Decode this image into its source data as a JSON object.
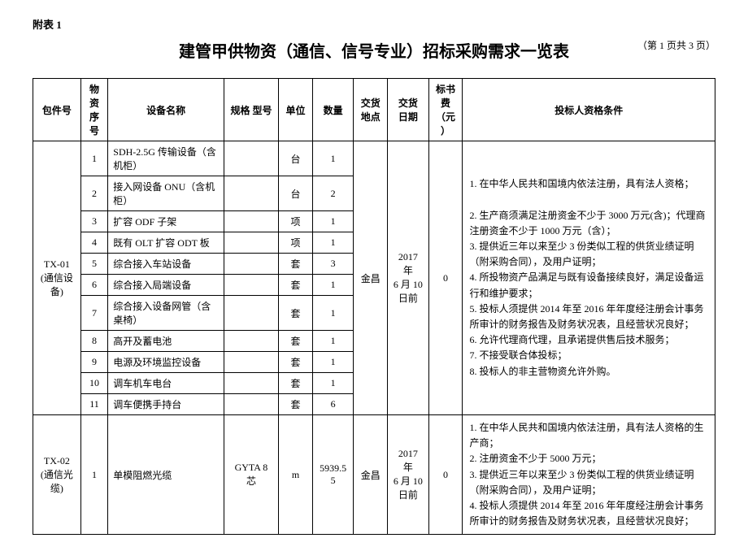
{
  "header": {
    "attachment_label": "附表 1",
    "title": "建管甲供物资（通信、信号专业）招标采购需求一览表",
    "page_info": "（第 1 页共 3 页）"
  },
  "columns": {
    "c0": "包件号",
    "c1": "物资\n序号",
    "c2": "设备名称",
    "c3": "规格\n型号",
    "c4": "单位",
    "c5": "数量",
    "c6": "交货\n地点",
    "c7": "交货\n日期",
    "c8": "标书费\n（元）",
    "c9": "投标人资格条件"
  },
  "group1": {
    "pkg": "TX-01\n(通信设备)",
    "location": "金昌",
    "date": "2017 年\n6 月 10\n日前",
    "fee": "0",
    "qual": "1. 在中华人民共和国境内依法注册，具有法人资格；\n\n2. 生产商须满足注册资金不少于 3000 万元(含)；代理商注册资金不少于 1000 万元（含）；\n3. 提供近三年以来至少 3 份类似工程的供货业绩证明（附采购合同），及用户证明；\n4. 所投物资产品满足与既有设备接续良好，满足设备运行和维护要求；\n5. 投标人须提供 2014 年至 2016 年年度经注册会计事务所审计的财务报告及财务状况表，且经营状况良好；\n6. 允许代理商代理，且承诺提供售后技术服务；\n7. 不接受联合体投标；\n8. 投标人的非主营物资允许外购。",
    "rows": [
      {
        "seq": "1",
        "name": "SDH-2.5G 传输设备（含机柜）",
        "spec": "",
        "unit": "台",
        "qty": "1"
      },
      {
        "seq": "2",
        "name": "接入网设备 ONU（含机柜）",
        "spec": "",
        "unit": "台",
        "qty": "2"
      },
      {
        "seq": "3",
        "name": "扩容 ODF 子架",
        "spec": "",
        "unit": "项",
        "qty": "1"
      },
      {
        "seq": "4",
        "name": "既有 OLT 扩容 ODT 板",
        "spec": "",
        "unit": "项",
        "qty": "1"
      },
      {
        "seq": "5",
        "name": "综合接入车站设备",
        "spec": "",
        "unit": "套",
        "qty": "3"
      },
      {
        "seq": "6",
        "name": "综合接入局端设备",
        "spec": "",
        "unit": "套",
        "qty": "1"
      },
      {
        "seq": "7",
        "name": "综合接入设备网管（含桌椅）",
        "spec": "",
        "unit": "套",
        "qty": "1"
      },
      {
        "seq": "8",
        "name": "高开及蓄电池",
        "spec": "",
        "unit": "套",
        "qty": "1"
      },
      {
        "seq": "9",
        "name": "电源及环境监控设备",
        "spec": "",
        "unit": "套",
        "qty": "1"
      },
      {
        "seq": "10",
        "name": "调车机车电台",
        "spec": "",
        "unit": "套",
        "qty": "1"
      },
      {
        "seq": "11",
        "name": "调车便携手持台",
        "spec": "",
        "unit": "套",
        "qty": "6"
      }
    ]
  },
  "group2": {
    "pkg": "TX-02\n(通信光缆)",
    "location": "金昌",
    "date": "2017 年\n6 月 10\n日前",
    "fee": "0",
    "qual": "1. 在中华人民共和国境内依法注册，具有法人资格的生产商；\n2. 注册资金不少于 5000 万元；\n3. 提供近三年以来至少 3 份类似工程的供货业绩证明（附采购合同），及用户证明；\n4. 投标人须提供 2014 年至 2016 年年度经注册会计事务所审计的财务报告及财务状况表，且经营状况良好；",
    "rows": [
      {
        "seq": "1",
        "name": "单模阻燃光缆",
        "spec": "GYTA 8 芯",
        "unit": "m",
        "qty": "5939.55"
      }
    ]
  }
}
